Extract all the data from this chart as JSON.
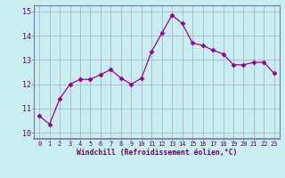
{
  "x": [
    0,
    1,
    2,
    3,
    4,
    5,
    6,
    7,
    8,
    9,
    10,
    11,
    12,
    13,
    14,
    15,
    16,
    17,
    18,
    19,
    20,
    21,
    22,
    23
  ],
  "y": [
    10.7,
    10.35,
    11.4,
    12.0,
    12.2,
    12.2,
    12.4,
    12.6,
    12.25,
    12.0,
    12.25,
    13.35,
    14.1,
    14.85,
    14.5,
    13.7,
    13.6,
    13.4,
    13.25,
    12.8,
    12.8,
    12.9,
    12.9,
    12.45
  ],
  "line_color": "#990099",
  "marker": "D",
  "marker_size": 2.5,
  "background_color": "#c8eef0",
  "grid_color": "#aaaacc",
  "xlabel": "Windchill (Refroidissement éolien,°C)",
  "xlabel_color": "#660066",
  "tick_color": "#660066",
  "ylim": [
    9.75,
    15.25
  ],
  "yticks": [
    10,
    11,
    12,
    13,
    14,
    15
  ],
  "xlim": [
    -0.5,
    23.5
  ],
  "xticks": [
    0,
    1,
    2,
    3,
    4,
    5,
    6,
    7,
    8,
    9,
    10,
    11,
    12,
    13,
    14,
    15,
    16,
    17,
    18,
    19,
    20,
    21,
    22,
    23
  ],
  "spine_color": "#7777aa"
}
